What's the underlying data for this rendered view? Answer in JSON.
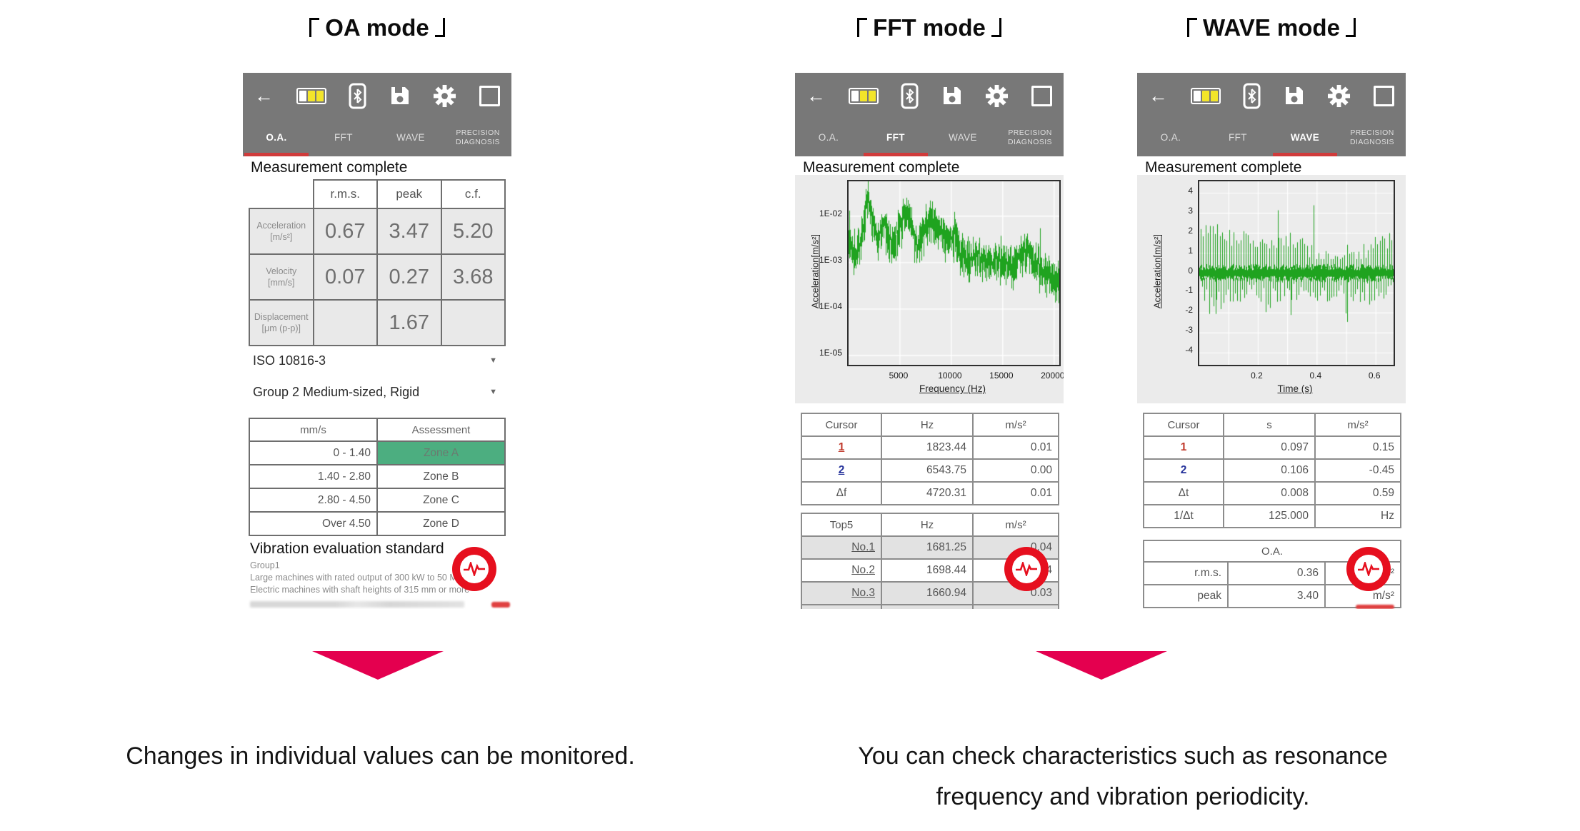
{
  "app_bar": {
    "tabs": [
      "O.A.",
      "FFT",
      "WAVE",
      "PRECISION DIAGNOSIS"
    ]
  },
  "status_text": "Measurement complete",
  "headings": {
    "oa": "OA mode",
    "fft": "FFT mode",
    "wave": "WAVE mode",
    "oa_bracketed": "「OA mode」",
    "fft_bracketed": "「FFT mode」",
    "wave_bracketed": "「WAVE mode」"
  },
  "oa": {
    "measurement_table": {
      "headers": [
        "r.m.s.",
        "peak",
        "c.f."
      ],
      "rows": [
        {
          "label": "Acceleration",
          "unit": "[m/s²]",
          "values": [
            "0.67",
            "3.47",
            "5.20"
          ]
        },
        {
          "label": "Velocity",
          "unit": "[mm/s]",
          "values": [
            "0.07",
            "0.27",
            "3.68"
          ]
        },
        {
          "label": "Displacement",
          "unit": "[μm (p-p)]",
          "values": [
            "",
            "1.67",
            ""
          ]
        }
      ]
    },
    "dropdowns": {
      "standard": "ISO 10816-3",
      "group": "Group 2 Medium-sized, Rigid",
      "caret": "▼"
    },
    "zone_table": {
      "headers": [
        "mm/s",
        "Assessment"
      ],
      "ranges": [
        "0 - 1.40",
        "1.40 - 2.80",
        "2.80 - 4.50",
        "Over 4.50"
      ],
      "zones": [
        "Zone A",
        "Zone B",
        "Zone C",
        "Zone D"
      ],
      "active_zone": "Zone A"
    },
    "standard_info": {
      "heading": "Vibration evaluation standard",
      "lines": [
        "Group1",
        "Large machines with rated output of 300 kW to 50 MW",
        "Electric machines with shaft heights of 315 mm or more"
      ]
    }
  },
  "fft": {
    "cursor_table": {
      "headers": [
        "Cursor",
        "Hz",
        "m/s²"
      ],
      "rows": [
        [
          "1",
          "1823.44",
          "0.01"
        ],
        [
          "2",
          "6543.75",
          "0.00"
        ],
        [
          "Δf",
          "4720.31",
          "0.01"
        ]
      ]
    },
    "top5_table": {
      "headers": [
        "Top5",
        "Hz",
        "m/s²"
      ],
      "rows": [
        [
          "No.1",
          "1681.25",
          "0.04"
        ],
        [
          "No.2",
          "1698.44",
          "0.04"
        ],
        [
          "No.3",
          "1660.94",
          "0.03"
        ]
      ]
    }
  },
  "wave": {
    "cursor_table": {
      "headers": [
        "Cursor",
        "s",
        "m/s²"
      ],
      "rows": [
        [
          "1",
          "0.097",
          "0.15"
        ],
        [
          "2",
          "0.106",
          "-0.45"
        ],
        [
          "Δt",
          "0.008",
          "0.59"
        ],
        [
          "1/Δt",
          "125.000",
          "Hz"
        ]
      ]
    },
    "oa_table": {
      "header": "O.A.",
      "rows": [
        [
          "r.m.s.",
          "0.36",
          "m/s²"
        ],
        [
          "peak",
          "3.40",
          "m/s²"
        ]
      ]
    }
  },
  "captions": {
    "left": "Changes in individual values can be monitored.",
    "right_line1": "You can check characteristics such as resonance",
    "right_line2": "frequency and vibration periodicity."
  },
  "colors": {
    "appbar_gray": "#787878",
    "tab_underline_red": "#d03b3b",
    "fab_red": "#e60f1e",
    "arrow_crimson": "#e4004f",
    "zone_a_green": "#4cae80",
    "chart_green": "#1fa31f",
    "battery_yellow": "#f3e52a"
  },
  "chart_data": [
    {
      "type": "line",
      "name": "fft-spectrum",
      "xlabel": "Frequency (Hz)",
      "ylabel": "Acceleration[m/s²]",
      "x_ticks": [
        5000,
        10000,
        15000,
        20000
      ],
      "x_tick_labels": [
        "5000",
        "10000",
        "15000",
        "20000"
      ],
      "y_tick_labels": [
        "1E-02",
        "1E-03",
        "1E-04",
        "1E-05"
      ],
      "y_grid_log": [
        -2,
        -3,
        -4,
        -5
      ],
      "xlim": [
        0,
        20500
      ],
      "ylog_range": [
        -5.2,
        -1.25
      ],
      "grid": true,
      "legend": "none",
      "color": "#1fa31f",
      "envelope": [
        [
          0,
          -2.55
        ],
        [
          150,
          -2.7
        ],
        [
          700,
          -2.75
        ],
        [
          1200,
          -2.55
        ],
        [
          1550,
          -2.1
        ],
        [
          1800,
          -1.52
        ],
        [
          2050,
          -1.95
        ],
        [
          2350,
          -2.05
        ],
        [
          2700,
          -2.45
        ],
        [
          3100,
          -2.35
        ],
        [
          3500,
          -2.18
        ],
        [
          3900,
          -2.5
        ],
        [
          4300,
          -2.65
        ],
        [
          4800,
          -2.3
        ],
        [
          5300,
          -2.0
        ],
        [
          5600,
          -1.78
        ],
        [
          6000,
          -2.15
        ],
        [
          6400,
          -2.5
        ],
        [
          6800,
          -2.55
        ],
        [
          7300,
          -2.3
        ],
        [
          7700,
          -2.05
        ],
        [
          8100,
          -1.95
        ],
        [
          8600,
          -2.15
        ],
        [
          9200,
          -2.4
        ],
        [
          9800,
          -2.45
        ],
        [
          10300,
          -2.4
        ],
        [
          10900,
          -2.75
        ],
        [
          11500,
          -2.9
        ],
        [
          12200,
          -2.85
        ],
        [
          12900,
          -2.9
        ],
        [
          13600,
          -3.0
        ],
        [
          14300,
          -2.9
        ],
        [
          15000,
          -2.95
        ],
        [
          15700,
          -3.0
        ],
        [
          16400,
          -2.9
        ],
        [
          17000,
          -2.8
        ],
        [
          17400,
          -2.7
        ],
        [
          18000,
          -2.95
        ],
        [
          18800,
          -3.1
        ],
        [
          19400,
          -3.2
        ],
        [
          20000,
          -3.35
        ],
        [
          20500,
          -3.45
        ]
      ],
      "noise_decades": 0.45,
      "spikes": [
        {
          "x": 18650,
          "top_log": -2.26
        },
        {
          "x": 60,
          "top_log": -1.88
        }
      ]
    },
    {
      "type": "line",
      "name": "time-waveform",
      "xlabel": "Time (s)",
      "ylabel": "Acceleration[m/s²]",
      "x_ticks": [
        0.2,
        0.4,
        0.6
      ],
      "x_tick_labels": [
        "0.2",
        "0.4",
        "0.6"
      ],
      "y_ticks": [
        4,
        3,
        2,
        1,
        0,
        -1,
        -2,
        -3,
        -4
      ],
      "xlim": [
        0,
        0.66
      ],
      "ylim": [
        -4.6,
        4.6
      ],
      "grid": true,
      "legend": "none",
      "color": "#1fa31f",
      "pulse_freq_hz": 125,
      "noise_band": 0.35,
      "pulse_amp_range": [
        0.7,
        2.5
      ],
      "big_pulses": [
        {
          "t": 0.267,
          "a": 3.15
        },
        {
          "t": 0.388,
          "a": 3.4
        }
      ],
      "big_pulses_neg": [
        {
          "t": 0.503,
          "a": -2.45
        },
        {
          "t": 0.31,
          "a": -2.1
        },
        {
          "t": 0.055,
          "a": -2.05
        }
      ]
    }
  ]
}
